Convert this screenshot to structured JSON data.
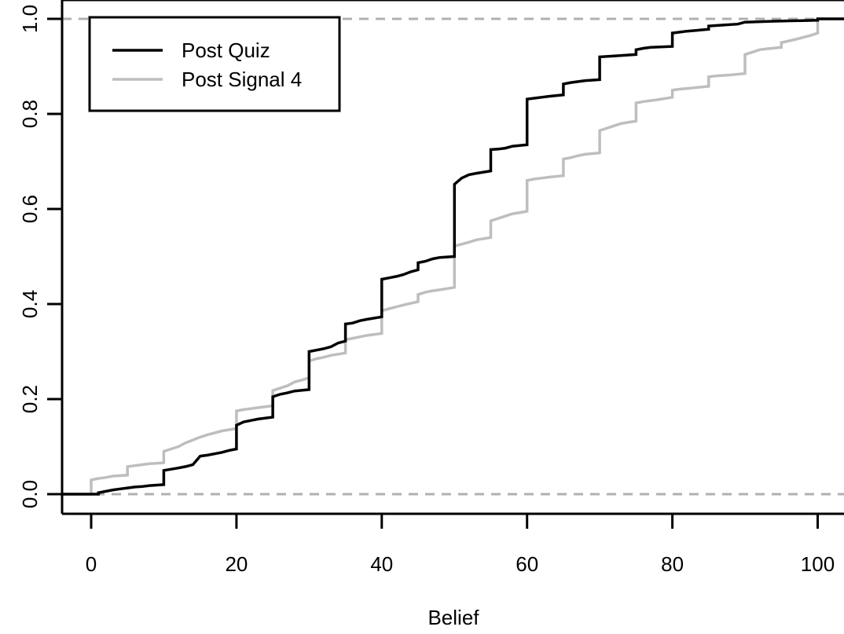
{
  "chart_data": {
    "type": "line",
    "step": true,
    "title": "",
    "xlabel": "Belief",
    "ylabel": "",
    "xlim": [
      -4,
      104
    ],
    "ylim": [
      0,
      1
    ],
    "x_ticks": [
      0,
      20,
      40,
      60,
      80,
      100
    ],
    "y_ticks": [
      0.0,
      0.2,
      0.4,
      0.6,
      0.8,
      1.0
    ],
    "x_tick_labels": [
      "0",
      "20",
      "40",
      "60",
      "80",
      "100"
    ],
    "y_tick_labels": [
      "0.0",
      "0.2",
      "0.4",
      "0.6",
      "0.8",
      "1.0"
    ],
    "reference_lines": [
      0,
      1
    ],
    "legend_position": "top-left",
    "grid": false,
    "series": [
      {
        "name": "Post Quiz",
        "color": "#000000",
        "points": [
          [
            -4,
            0
          ],
          [
            1,
            0
          ],
          [
            1,
            0.003
          ],
          [
            2,
            0.006
          ],
          [
            3,
            0.009
          ],
          [
            4,
            0.011
          ],
          [
            5,
            0.013
          ],
          [
            6,
            0.015
          ],
          [
            7,
            0.016
          ],
          [
            8,
            0.018
          ],
          [
            9,
            0.019
          ],
          [
            10,
            0.02
          ],
          [
            10,
            0.05
          ],
          [
            12,
            0.055
          ],
          [
            13,
            0.058
          ],
          [
            14,
            0.062
          ],
          [
            15,
            0.08
          ],
          [
            16,
            0.082
          ],
          [
            18,
            0.088
          ],
          [
            19,
            0.092
          ],
          [
            20,
            0.095
          ],
          [
            20,
            0.145
          ],
          [
            21,
            0.152
          ],
          [
            22,
            0.155
          ],
          [
            23,
            0.158
          ],
          [
            25,
            0.162
          ],
          [
            25,
            0.205
          ],
          [
            26,
            0.21
          ],
          [
            27,
            0.213
          ],
          [
            28,
            0.217
          ],
          [
            30,
            0.22
          ],
          [
            30,
            0.3
          ],
          [
            31,
            0.303
          ],
          [
            32,
            0.306
          ],
          [
            33,
            0.31
          ],
          [
            34,
            0.318
          ],
          [
            35,
            0.322
          ],
          [
            35,
            0.358
          ],
          [
            36,
            0.36
          ],
          [
            37,
            0.365
          ],
          [
            38,
            0.368
          ],
          [
            40,
            0.373
          ],
          [
            40,
            0.452
          ],
          [
            41,
            0.455
          ],
          [
            42,
            0.458
          ],
          [
            43,
            0.462
          ],
          [
            44,
            0.468
          ],
          [
            45,
            0.472
          ],
          [
            45,
            0.487
          ],
          [
            46,
            0.49
          ],
          [
            47,
            0.495
          ],
          [
            48,
            0.498
          ],
          [
            50,
            0.5
          ],
          [
            50,
            0.652
          ],
          [
            51,
            0.665
          ],
          [
            52,
            0.672
          ],
          [
            53,
            0.675
          ],
          [
            55,
            0.68
          ],
          [
            55,
            0.725
          ],
          [
            56,
            0.726
          ],
          [
            57,
            0.728
          ],
          [
            58,
            0.732
          ],
          [
            60,
            0.735
          ],
          [
            60,
            0.831
          ],
          [
            61,
            0.833
          ],
          [
            62,
            0.835
          ],
          [
            63,
            0.837
          ],
          [
            65,
            0.84
          ],
          [
            65,
            0.863
          ],
          [
            66,
            0.866
          ],
          [
            67,
            0.868
          ],
          [
            68,
            0.87
          ],
          [
            70,
            0.872
          ],
          [
            70,
            0.92
          ],
          [
            72,
            0.922
          ],
          [
            75,
            0.925
          ],
          [
            75,
            0.935
          ],
          [
            76,
            0.938
          ],
          [
            77,
            0.94
          ],
          [
            80,
            0.942
          ],
          [
            80,
            0.97
          ],
          [
            82,
            0.974
          ],
          [
            85,
            0.978
          ],
          [
            85,
            0.985
          ],
          [
            87,
            0.987
          ],
          [
            89,
            0.989
          ],
          [
            90,
            0.993
          ],
          [
            92,
            0.994
          ],
          [
            94,
            0.995
          ],
          [
            100,
            0.997
          ],
          [
            100,
            1
          ],
          [
            104,
            1
          ]
        ]
      },
      {
        "name": "Post Signal 4",
        "color": "#bebebe",
        "points": [
          [
            -4,
            0
          ],
          [
            0,
            0
          ],
          [
            0,
            0.03
          ],
          [
            1,
            0.033
          ],
          [
            2,
            0.035
          ],
          [
            3,
            0.038
          ],
          [
            5,
            0.04
          ],
          [
            5,
            0.058
          ],
          [
            6,
            0.06
          ],
          [
            7,
            0.062
          ],
          [
            8,
            0.064
          ],
          [
            10,
            0.066
          ],
          [
            10,
            0.09
          ],
          [
            11,
            0.095
          ],
          [
            12,
            0.1
          ],
          [
            13,
            0.108
          ],
          [
            15,
            0.12
          ],
          [
            16,
            0.125
          ],
          [
            17,
            0.129
          ],
          [
            18,
            0.133
          ],
          [
            20,
            0.138
          ],
          [
            20,
            0.175
          ],
          [
            21,
            0.178
          ],
          [
            23,
            0.182
          ],
          [
            25,
            0.186
          ],
          [
            25,
            0.218
          ],
          [
            26,
            0.223
          ],
          [
            27,
            0.228
          ],
          [
            28,
            0.236
          ],
          [
            29,
            0.24
          ],
          [
            30,
            0.245
          ],
          [
            30,
            0.28
          ],
          [
            31,
            0.285
          ],
          [
            32,
            0.288
          ],
          [
            33,
            0.292
          ],
          [
            35,
            0.297
          ],
          [
            35,
            0.325
          ],
          [
            36,
            0.328
          ],
          [
            37,
            0.331
          ],
          [
            38,
            0.334
          ],
          [
            40,
            0.338
          ],
          [
            40,
            0.386
          ],
          [
            41,
            0.39
          ],
          [
            42,
            0.394
          ],
          [
            43,
            0.398
          ],
          [
            45,
            0.405
          ],
          [
            45,
            0.42
          ],
          [
            46,
            0.425
          ],
          [
            47,
            0.428
          ],
          [
            48,
            0.43
          ],
          [
            50,
            0.435
          ],
          [
            50,
            0.522
          ],
          [
            51,
            0.526
          ],
          [
            52,
            0.53
          ],
          [
            53,
            0.535
          ],
          [
            55,
            0.54
          ],
          [
            55,
            0.575
          ],
          [
            56,
            0.58
          ],
          [
            57,
            0.585
          ],
          [
            58,
            0.59
          ],
          [
            60,
            0.595
          ],
          [
            60,
            0.66
          ],
          [
            61,
            0.663
          ],
          [
            62,
            0.665
          ],
          [
            63,
            0.667
          ],
          [
            65,
            0.67
          ],
          [
            65,
            0.705
          ],
          [
            66,
            0.708
          ],
          [
            67,
            0.712
          ],
          [
            68,
            0.715
          ],
          [
            70,
            0.718
          ],
          [
            70,
            0.765
          ],
          [
            71,
            0.77
          ],
          [
            72,
            0.775
          ],
          [
            73,
            0.78
          ],
          [
            75,
            0.785
          ],
          [
            75,
            0.823
          ],
          [
            76,
            0.826
          ],
          [
            77,
            0.828
          ],
          [
            78,
            0.83
          ],
          [
            80,
            0.835
          ],
          [
            80,
            0.85
          ],
          [
            81,
            0.852
          ],
          [
            83,
            0.855
          ],
          [
            85,
            0.858
          ],
          [
            85,
            0.878
          ],
          [
            86,
            0.88
          ],
          [
            88,
            0.882
          ],
          [
            90,
            0.885
          ],
          [
            90,
            0.925
          ],
          [
            91,
            0.93
          ],
          [
            92,
            0.935
          ],
          [
            93,
            0.937
          ],
          [
            95,
            0.94
          ],
          [
            95,
            0.95
          ],
          [
            97,
            0.957
          ],
          [
            99,
            0.965
          ],
          [
            100,
            0.97
          ],
          [
            100,
            1
          ],
          [
            104,
            1
          ]
        ]
      }
    ]
  }
}
